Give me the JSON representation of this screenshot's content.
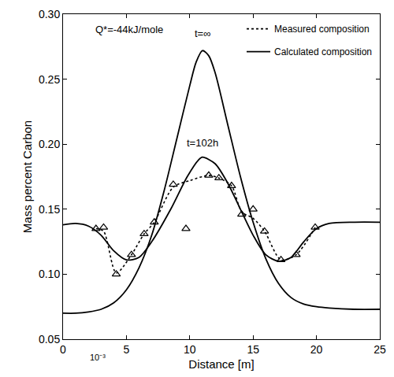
{
  "chart_data": {
    "type": "line",
    "x_label": "Distance [m]",
    "y_label": "Mass percent Carbon",
    "annotations": [
      "Q*=-44kJ/mole",
      "t=∞",
      "t=102h",
      "10⁻³"
    ],
    "xlim": [
      0,
      25
    ],
    "xticks": [
      0,
      5,
      10,
      15,
      20,
      25
    ],
    "ylim": [
      0.05,
      0.3
    ],
    "yticks": [
      {
        "value": 0.05,
        "label": "0.05"
      },
      {
        "value": 0.1,
        "label": "0.10"
      },
      {
        "value": 0.15,
        "label": "0.15"
      },
      {
        "value": 0.2,
        "label": "0.20"
      },
      {
        "value": 0.25,
        "label": "0.25"
      },
      {
        "value": 0.3,
        "label": "0.30"
      }
    ],
    "grid": false,
    "legend": "top-right",
    "series": [
      {
        "type": "scatter",
        "marker": "triangle",
        "color": "#000000",
        "x": [
          2.6,
          3.2,
          4.2,
          5.4,
          6.4,
          7.2,
          8.7,
          9.7,
          11.5,
          12.3,
          13.3,
          14.1,
          15.0,
          15.9,
          17.2,
          18.4,
          19.9
        ],
        "values": [
          0.135,
          0.136,
          0.1,
          0.115,
          0.131,
          0.14,
          0.169,
          0.135,
          0.176,
          0.174,
          0.168,
          0.146,
          0.15,
          0.133,
          0.111,
          0.115,
          0.136
        ]
      },
      {
        "name": "Measured composition",
        "type": "line",
        "line_style": "dotted",
        "color": "#000000",
        "x": [
          2.6,
          3.2,
          4.2,
          5.4,
          6.4,
          7.2,
          8.7,
          10.0,
          11.5,
          12.3,
          13.3,
          14.1,
          15.0,
          15.9,
          17.2,
          18.4,
          19.9
        ],
        "values": [
          0.135,
          0.133,
          0.101,
          0.115,
          0.131,
          0.14,
          0.167,
          0.172,
          0.176,
          0.174,
          0.168,
          0.148,
          0.143,
          0.133,
          0.111,
          0.115,
          0.136
        ]
      },
      {
        "name": "Calculated composition",
        "type": "line",
        "line_style": "solid",
        "color": "#000000",
        "x": [
          0,
          1,
          2,
          3,
          4,
          5,
          6,
          7,
          8.5,
          9.8,
          10.7,
          11,
          12,
          13,
          14,
          15,
          16,
          17,
          18,
          19,
          20,
          21,
          23,
          25
        ],
        "values": [
          0.138,
          0.139,
          0.137,
          0.13,
          0.118,
          0.111,
          0.113,
          0.125,
          0.15,
          0.175,
          0.188,
          0.19,
          0.185,
          0.17,
          0.15,
          0.13,
          0.115,
          0.11,
          0.113,
          0.125,
          0.135,
          0.139,
          0.14,
          0.14
        ]
      },
      {
        "name": "Calculated composition",
        "type": "line",
        "line_style": "solid",
        "color": "#000000",
        "x": [
          0,
          1,
          2,
          3,
          4,
          5,
          6,
          7,
          8,
          9,
          10,
          10.5,
          11,
          11.5,
          12,
          13,
          14,
          15,
          16,
          17,
          18,
          19,
          20,
          21,
          23,
          25
        ],
        "values": [
          0.07,
          0.07,
          0.071,
          0.073,
          0.078,
          0.088,
          0.105,
          0.13,
          0.165,
          0.205,
          0.245,
          0.263,
          0.272,
          0.268,
          0.255,
          0.215,
          0.175,
          0.14,
          0.112,
          0.093,
          0.082,
          0.077,
          0.075,
          0.074,
          0.073,
          0.073
        ]
      }
    ]
  }
}
